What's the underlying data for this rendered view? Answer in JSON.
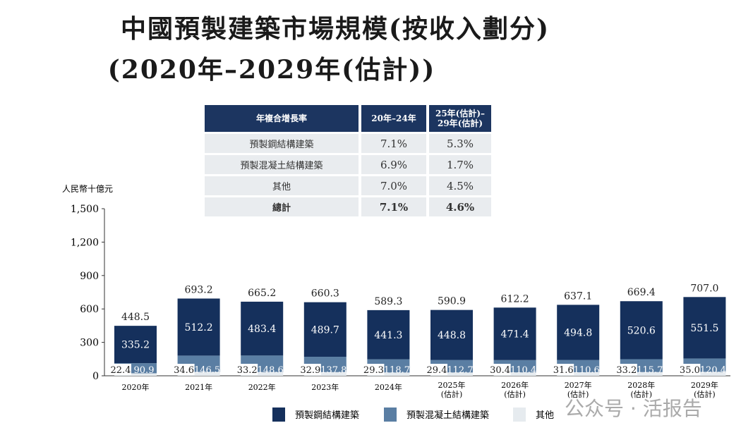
{
  "title_line1": "中國預製建築市場規模(按收入劃分)",
  "title_line2": "(2020年–2029年(估計))",
  "cagr_table": {
    "headers": [
      "年複合增長率",
      "20年–24年",
      "25年(估計)–29年(估計)"
    ],
    "rows": [
      [
        "預製鋼結構建築",
        "7.1%",
        "5.3%"
      ],
      [
        "預製混凝土結構建築",
        "6.9%",
        "1.7%"
      ],
      [
        "其他",
        "7.0%",
        "4.5%"
      ],
      [
        "總計",
        "7.1%",
        "4.6%"
      ]
    ]
  },
  "watermark": "公众号 · 活报告",
  "chart_data": {
    "type": "bar",
    "stacked": true,
    "ylabel": "人民幣十億元",
    "ylim": [
      0,
      1500
    ],
    "yticks": [
      "0",
      "300",
      "600",
      "900",
      "1,200",
      "1,500"
    ],
    "grid": false,
    "legend_position": "bottom",
    "categories": [
      "2020年",
      "2021年",
      "2022年",
      "2023年",
      "2024年",
      "2025年\n(估計)",
      "2026年\n(估計)",
      "2027年\n(估計)",
      "2028年\n(估計)",
      "2029年\n(估計)"
    ],
    "series": [
      {
        "name": "其他",
        "color": "#e6ebef",
        "values": [
          22.4,
          34.6,
          33.2,
          32.9,
          29.3,
          29.4,
          30.4,
          31.6,
          33.2,
          35.0
        ]
      },
      {
        "name": "預製混凝土結構建築",
        "color": "#5a7ea3",
        "values": [
          90.9,
          146.5,
          148.6,
          137.8,
          118.7,
          112.7,
          110.4,
          110.6,
          115.7,
          120.4
        ]
      },
      {
        "name": "預製鋼結構建築",
        "color": "#15305c",
        "values": [
          335.2,
          512.2,
          483.4,
          489.7,
          441.3,
          448.8,
          471.4,
          494.8,
          520.6,
          551.5
        ]
      }
    ],
    "totals": [
      448.5,
      693.2,
      665.2,
      660.3,
      589.3,
      590.9,
      612.2,
      637.1,
      669.4,
      707.0
    ]
  }
}
